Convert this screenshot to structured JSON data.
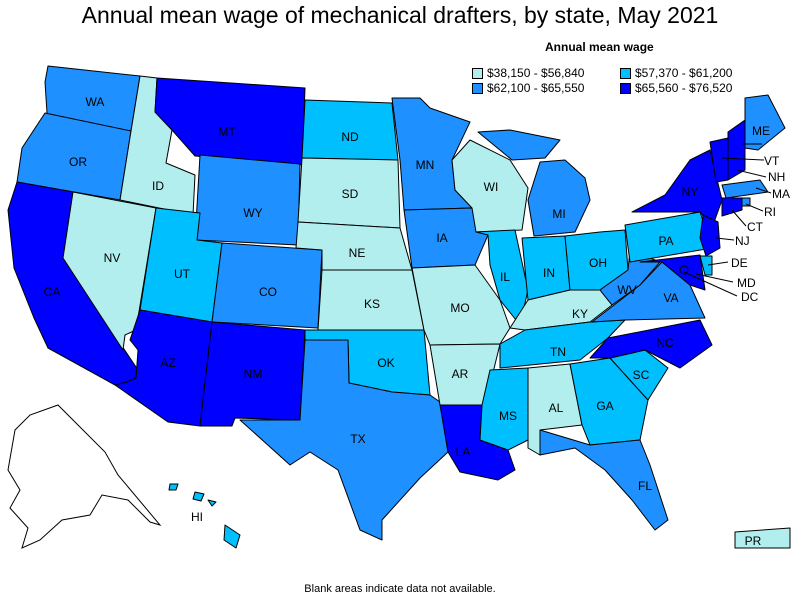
{
  "title": "Annual mean wage of mechanical drafters, by state, May 2021",
  "legend": {
    "title": "Annual mean wage",
    "items": [
      {
        "label": "$38,150 - $56,840",
        "color": "#b2eeee"
      },
      {
        "label": "$57,370 - $61,200",
        "color": "#00bfff"
      },
      {
        "label": "$62,100 - $65,550",
        "color": "#1e90ff"
      },
      {
        "label": "$65,560 - $76,520",
        "color": "#0000ff"
      }
    ]
  },
  "footnote": "Blank areas indicate data not available.",
  "states": {
    "WA": {
      "label": "WA",
      "class": 2
    },
    "OR": {
      "label": "OR",
      "class": 2
    },
    "CA": {
      "label": "CA",
      "class": 3
    },
    "ID": {
      "label": "ID",
      "class": 0
    },
    "NV": {
      "label": "NV",
      "class": 0
    },
    "MT": {
      "label": "MT",
      "class": 3
    },
    "WY": {
      "label": "WY",
      "class": 2
    },
    "UT": {
      "label": "UT",
      "class": 1
    },
    "AZ": {
      "label": "AZ",
      "class": 3
    },
    "CO": {
      "label": "CO",
      "class": 2
    },
    "NM": {
      "label": "NM",
      "class": 3
    },
    "ND": {
      "label": "ND",
      "class": 1
    },
    "SD": {
      "label": "SD",
      "class": 0
    },
    "NE": {
      "label": "NE",
      "class": 0
    },
    "KS": {
      "label": "KS",
      "class": 0
    },
    "OK": {
      "label": "OK",
      "class": 1
    },
    "TX": {
      "label": "TX",
      "class": 2
    },
    "MN": {
      "label": "MN",
      "class": 2
    },
    "IA": {
      "label": "IA",
      "class": 2
    },
    "MO": {
      "label": "MO",
      "class": 0
    },
    "AR": {
      "label": "AR",
      "class": 0
    },
    "LA": {
      "label": "LA",
      "class": 3
    },
    "WI": {
      "label": "WI",
      "class": 0
    },
    "IL": {
      "label": "IL",
      "class": 1
    },
    "MI": {
      "label": "MI",
      "class": 2
    },
    "IN": {
      "label": "IN",
      "class": 1
    },
    "OH": {
      "label": "OH",
      "class": 1
    },
    "KY": {
      "label": "KY",
      "class": 0
    },
    "TN": {
      "label": "TN",
      "class": 1
    },
    "MS": {
      "label": "MS",
      "class": 1
    },
    "AL": {
      "label": "AL",
      "class": 0
    },
    "GA": {
      "label": "GA",
      "class": 1
    },
    "FL": {
      "label": "FL",
      "class": 2
    },
    "SC": {
      "label": "SC",
      "class": 1
    },
    "NC": {
      "label": "NC",
      "class": 3
    },
    "VA": {
      "label": "VA",
      "class": 2
    },
    "WV": {
      "label": "WV",
      "class": 2
    },
    "PA": {
      "label": "PA",
      "class": 1
    },
    "NY": {
      "label": "NY",
      "class": 3
    },
    "ME": {
      "label": "ME",
      "class": 2
    },
    "VT": {
      "label": "VT",
      "class": 3
    },
    "NH": {
      "label": "NH",
      "class": 3
    },
    "MA": {
      "label": "MA",
      "class": 2
    },
    "RI": {
      "label": "RI",
      "class": 2
    },
    "CT": {
      "label": "CT",
      "class": 3
    },
    "NJ": {
      "label": "NJ",
      "class": 3
    },
    "DE": {
      "label": "DE",
      "class": 1
    },
    "MD": {
      "label": "MD",
      "class": 3
    },
    "DC": {
      "label": "DC",
      "class": 3
    },
    "HI": {
      "label": "HI",
      "class": 1
    },
    "PR": {
      "label": "PR",
      "class": 0
    },
    "AK": {
      "label": "",
      "class": null
    }
  }
}
